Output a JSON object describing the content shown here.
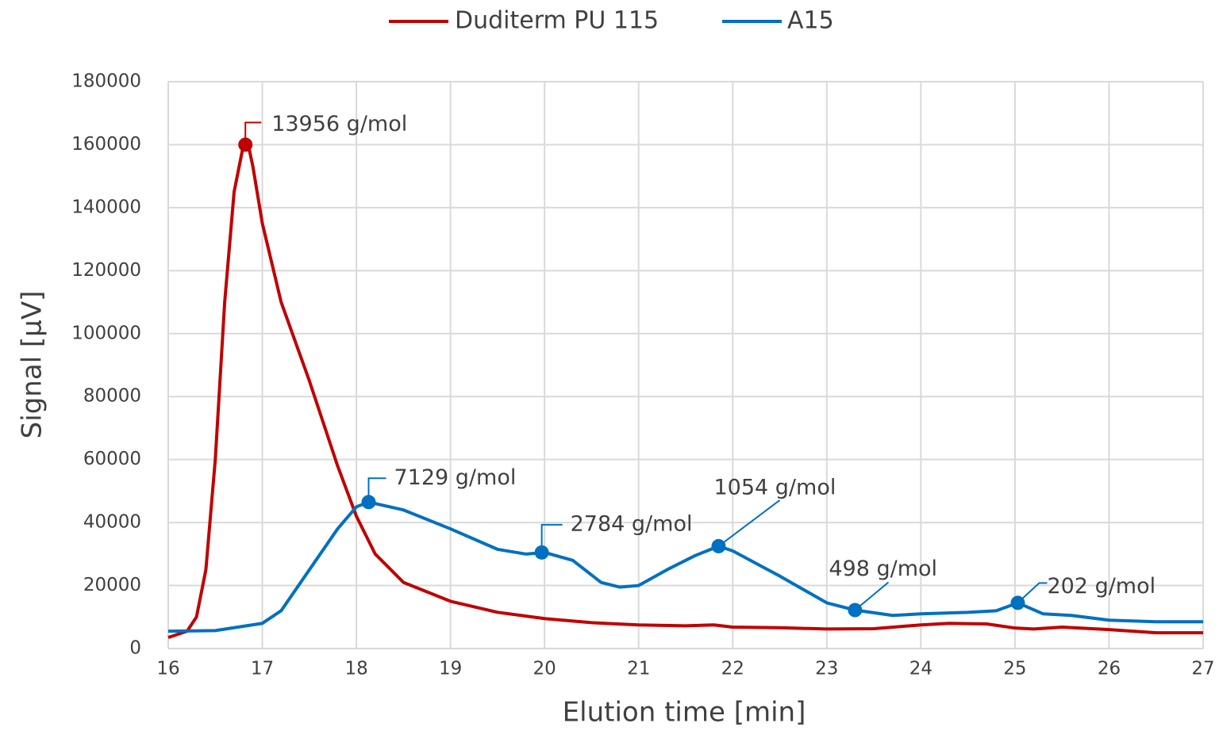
{
  "chart_data": {
    "type": "line",
    "xlabel": "Elution time [min]",
    "ylabel": "Signal [µV]",
    "xlim": [
      16,
      27
    ],
    "xticks": [
      16,
      17,
      18,
      19,
      20,
      21,
      22,
      23,
      24,
      25,
      26,
      27
    ],
    "ylim": [
      0,
      180000
    ],
    "yticks": [
      0,
      20000,
      40000,
      60000,
      80000,
      100000,
      120000,
      140000,
      160000,
      180000
    ],
    "grid": true,
    "legend": "top",
    "series": [
      {
        "name": "Duditerm PU 115",
        "color": "#c00000",
        "x": [
          16.0,
          16.2,
          16.3,
          16.4,
          16.5,
          16.6,
          16.7,
          16.8,
          16.85,
          16.9,
          17.0,
          17.2,
          17.5,
          17.8,
          18.0,
          18.2,
          18.5,
          19.0,
          19.5,
          20.0,
          20.5,
          21.0,
          21.5,
          21.8,
          22.0,
          22.5,
          23.0,
          23.5,
          24.0,
          24.3,
          24.7,
          25.0,
          25.2,
          25.5,
          26.0,
          26.5,
          27.0
        ],
        "values": [
          3500,
          5500,
          10000,
          25000,
          60000,
          110000,
          145000,
          160000,
          160000,
          153000,
          135000,
          110000,
          85000,
          58000,
          42000,
          30000,
          21000,
          15000,
          11500,
          9500,
          8200,
          7500,
          7200,
          7500,
          6800,
          6600,
          6200,
          6300,
          7500,
          8000,
          7800,
          6500,
          6200,
          6800,
          6000,
          5000,
          5000
        ],
        "points": [
          {
            "x": 16.82,
            "y": 160000,
            "label": "13956 g/mol"
          }
        ]
      },
      {
        "name": "A15",
        "color": "#0070c0",
        "x": [
          16.0,
          16.5,
          17.0,
          17.2,
          17.5,
          17.8,
          18.0,
          18.13,
          18.5,
          19.0,
          19.5,
          19.8,
          20.0,
          20.3,
          20.6,
          20.8,
          21.0,
          21.3,
          21.6,
          21.85,
          22.0,
          22.5,
          23.0,
          23.3,
          23.7,
          24.0,
          24.5,
          24.8,
          25.03,
          25.3,
          25.6,
          26.0,
          26.5,
          27.0
        ],
        "values": [
          5500,
          5700,
          8000,
          12000,
          25000,
          38000,
          45000,
          46500,
          44000,
          38000,
          31500,
          30000,
          30500,
          28000,
          21000,
          19500,
          20000,
          25000,
          29500,
          32500,
          31000,
          23000,
          14500,
          12200,
          10500,
          11000,
          11500,
          12000,
          14500,
          11000,
          10500,
          9000,
          8500,
          8500
        ],
        "points": [
          {
            "x": 18.13,
            "y": 46500,
            "label": "7129 g/mol"
          },
          {
            "x": 19.97,
            "y": 30500,
            "label": "2784 g/mol"
          },
          {
            "x": 21.85,
            "y": 32500,
            "label": "1054 g/mol"
          },
          {
            "x": 23.3,
            "y": 12200,
            "label": "498 g/mol"
          },
          {
            "x": 25.03,
            "y": 14500,
            "label": "202 g/mol"
          }
        ]
      }
    ]
  }
}
